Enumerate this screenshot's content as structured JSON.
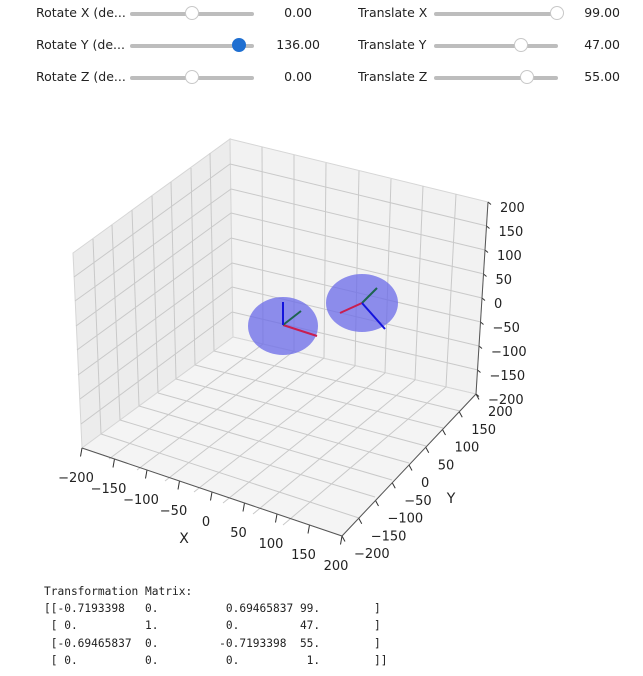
{
  "sliders": [
    {
      "label": "Rotate X (de...",
      "value": "0.00",
      "fraction": 0.5,
      "active": false
    },
    {
      "label": "Rotate Y (de...",
      "value": "136.00",
      "fraction": 0.878,
      "active": true
    },
    {
      "label": "Rotate Z (de...",
      "value": "0.00",
      "fraction": 0.5,
      "active": false
    },
    {
      "label": "Translate X",
      "value": "99.00",
      "fraction": 0.995,
      "active": false
    },
    {
      "label": "Translate Y",
      "value": "47.00",
      "fraction": 0.7,
      "active": false
    },
    {
      "label": "Translate Z",
      "value": "55.00",
      "fraction": 0.75,
      "active": false
    }
  ],
  "plot": {
    "x_label": "X",
    "y_label": "Y",
    "x_ticks": [
      "−200",
      "−150",
      "−100",
      "−50",
      "0",
      "50",
      "100",
      "150",
      "200"
    ],
    "y_ticks": [
      "−200",
      "−150",
      "−100",
      "−50",
      "0",
      "50",
      "100",
      "150",
      "200"
    ],
    "z_ticks": [
      "200",
      "150",
      "100",
      "50",
      "0",
      "−50",
      "−100",
      "−150",
      "−200"
    ],
    "sphere_color": "#6a6ae8",
    "axis_colors": {
      "x": "#c81e50",
      "y": "#1e6450",
      "z": "#1414dc"
    }
  },
  "matrix": {
    "title": "Transformation Matrix:",
    "rows": [
      "[[-0.7193398   0.          0.69465837 99.        ]",
      " [ 0.          1.          0.         47.        ]",
      " [-0.69465837  0.         -0.7193398  55.        ]",
      " [ 0.          0.          0.          1.        ]]"
    ]
  }
}
